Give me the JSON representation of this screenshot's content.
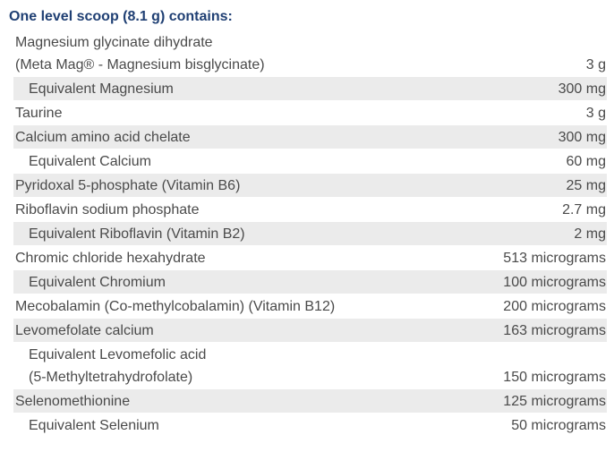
{
  "title": "One level scoop (8.1 g) contains:",
  "rows": [
    {
      "lines": [
        "Magnesium glycinate dihydrate",
        "(Meta Mag® - Magnesium bisglycinate)"
      ],
      "amount": "3 g",
      "sub": false,
      "shaded": false
    },
    {
      "lines": [
        "Equivalent Magnesium"
      ],
      "amount": "300 mg",
      "sub": true,
      "shaded": true
    },
    {
      "lines": [
        "Taurine"
      ],
      "amount": "3 g",
      "sub": false,
      "shaded": false
    },
    {
      "lines": [
        "Calcium amino acid chelate"
      ],
      "amount": "300 mg",
      "sub": false,
      "shaded": true
    },
    {
      "lines": [
        "Equivalent Calcium"
      ],
      "amount": "60 mg",
      "sub": true,
      "shaded": false
    },
    {
      "lines": [
        "Pyridoxal 5-phosphate (Vitamin B6)"
      ],
      "amount": "25 mg",
      "sub": false,
      "shaded": true
    },
    {
      "lines": [
        "Riboflavin sodium phosphate"
      ],
      "amount": "2.7 mg",
      "sub": false,
      "shaded": false
    },
    {
      "lines": [
        "Equivalent Riboflavin (Vitamin B2)"
      ],
      "amount": "2 mg",
      "sub": true,
      "shaded": true
    },
    {
      "lines": [
        "Chromic chloride hexahydrate"
      ],
      "amount": "513 micrograms",
      "sub": false,
      "shaded": false
    },
    {
      "lines": [
        "Equivalent Chromium"
      ],
      "amount": "100 micrograms",
      "sub": true,
      "shaded": true
    },
    {
      "lines": [
        "Mecobalamin (Co-methylcobalamin) (Vitamin B12)"
      ],
      "amount": "200 micrograms",
      "sub": false,
      "shaded": false
    },
    {
      "lines": [
        "Levomefolate calcium"
      ],
      "amount": "163 micrograms",
      "sub": false,
      "shaded": true
    },
    {
      "lines": [
        "Equivalent Levomefolic acid",
        "(5-Methyltetrahydrofolate)"
      ],
      "amount": "150 micrograms",
      "sub": true,
      "shaded": false
    },
    {
      "lines": [
        "Selenomethionine"
      ],
      "amount": "125 micrograms",
      "sub": false,
      "shaded": true
    },
    {
      "lines": [
        "Equivalent Selenium"
      ],
      "amount": "50 micrograms",
      "sub": true,
      "shaded": false
    }
  ]
}
